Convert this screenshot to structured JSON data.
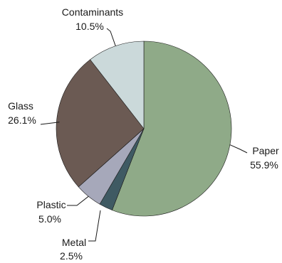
{
  "chart_data": {
    "type": "pie",
    "start_angle_deg": 0,
    "direction": "clockwise",
    "slices": [
      {
        "name": "Paper",
        "label": "Paper",
        "percent_label": "55.9%",
        "value": 55.9,
        "color": "#8faa88"
      },
      {
        "name": "Metal",
        "label": "Metal",
        "percent_label": "2.5%",
        "value": 2.5,
        "color": "#3f5a63"
      },
      {
        "name": "Plastic",
        "label": "Plastic",
        "percent_label": "5.0%",
        "value": 5.0,
        "color": "#a6a8ba"
      },
      {
        "name": "Glass",
        "label": "Glass",
        "percent_label": "26.1%",
        "value": 26.1,
        "color": "#6b5a53"
      },
      {
        "name": "Contaminants",
        "label": "Contaminants",
        "percent_label": "10.5%",
        "value": 10.5,
        "color": "#cbd9da"
      }
    ]
  }
}
